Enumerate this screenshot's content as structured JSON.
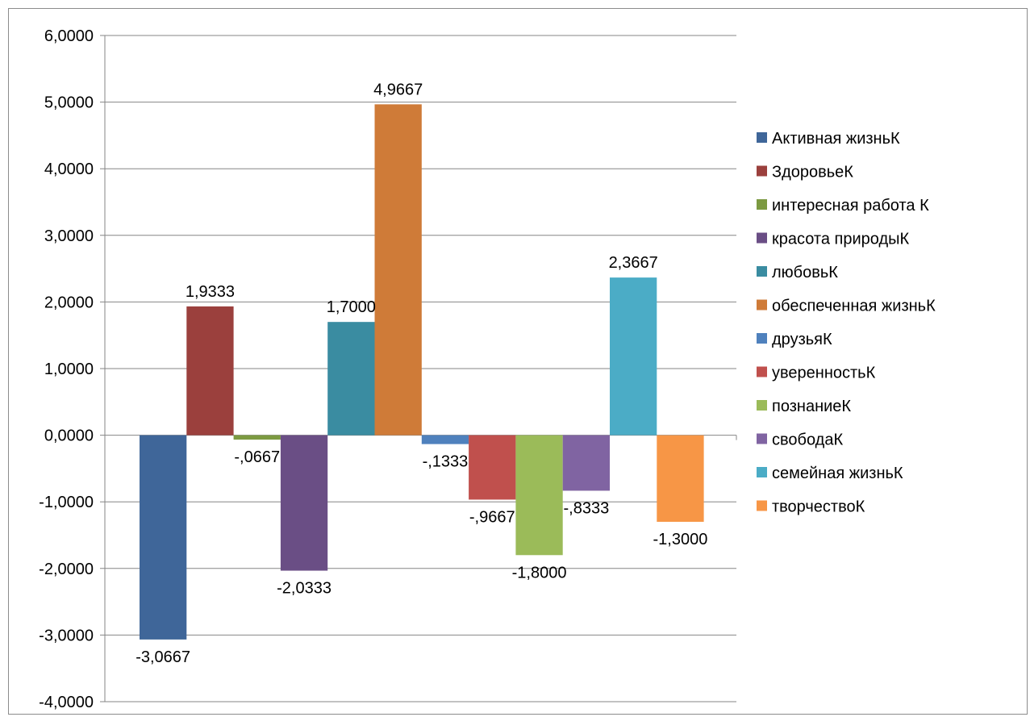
{
  "chart_data": {
    "type": "bar",
    "title": "",
    "xlabel": "",
    "ylabel": "",
    "ylim": [
      -4,
      6
    ],
    "yticks": [
      "6,0000",
      "5,0000",
      "4,0000",
      "3,0000",
      "2,0000",
      "1,0000",
      "0,0000",
      "-1,0000",
      "-2,0000",
      "-3,0000",
      "-4,0000"
    ],
    "grid": true,
    "legend_position": "right",
    "categories": [
      ""
    ],
    "series": [
      {
        "name": "Активная жизньК",
        "value": -3.0667,
        "label": "-3,0667",
        "color": "#3F6699"
      },
      {
        "name": "ЗдоровьеК",
        "value": 1.9333,
        "label": "1,9333",
        "color": "#9B403D"
      },
      {
        "name": "интересная работа К",
        "value": -0.0667,
        "label": "-,0667",
        "color": "#7C9A41"
      },
      {
        "name": "красота природыК",
        "value": -2.0333,
        "label": "-2,0333",
        "color": "#6A4E85"
      },
      {
        "name": "любовьК",
        "value": 1.7,
        "label": "1,7000",
        "color": "#3A8CA1"
      },
      {
        "name": "обеспеченная жизньК",
        "value": 4.9667,
        "label": "4,9667",
        "color": "#CF7B38"
      },
      {
        "name": "друзьяК",
        "value": -0.1333,
        "label": "-,1333",
        "color": "#4F81BD"
      },
      {
        "name": "уверенностьК",
        "value": -0.9667,
        "label": "-,9667",
        "color": "#C0504D"
      },
      {
        "name": "познаниеК",
        "value": -1.8,
        "label": "-1,8000",
        "color": "#9BBB59"
      },
      {
        "name": "свободаК",
        "value": -0.8333,
        "label": "-,8333",
        "color": "#8064A2"
      },
      {
        "name": "семейная жизньК",
        "value": 2.3667,
        "label": "2,3667",
        "color": "#4BACC6"
      },
      {
        "name": "творчествоК",
        "value": -1.3,
        "label": "-1,3000",
        "color": "#F79646"
      }
    ]
  }
}
